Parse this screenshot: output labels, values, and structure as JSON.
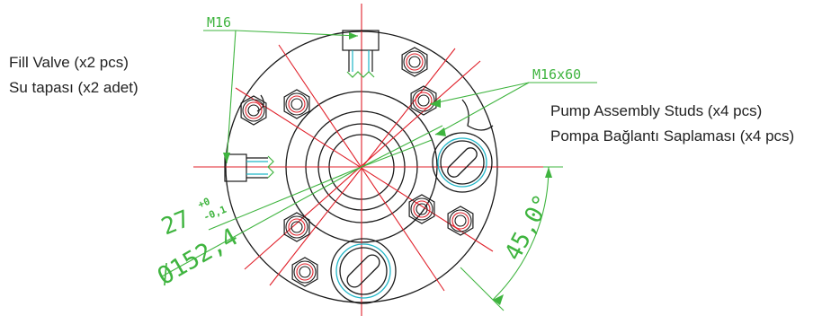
{
  "notes": {
    "fill_valve_en": "Fill Valve (x2 pcs)",
    "fill_valve_tr": "Su tapası (x2 adet)",
    "studs_en": "Pump Assembly Studs (x4 pcs)",
    "studs_tr": "Pompa Bağlantı Saplaması (x4 pcs)"
  },
  "dimensions": {
    "thread_fill": "M16",
    "thread_stud": "M16x60",
    "bore_partial": "27",
    "tol_upper": "+0",
    "tol_lower": "-0,1",
    "bolt_circle": "Ø152,4",
    "angle": "45,0°"
  },
  "colors": {
    "outline": "#1a1a1a",
    "centerline": "#e0202a",
    "dimension": "#3fb43f",
    "cyan": "#1fb6c8"
  }
}
